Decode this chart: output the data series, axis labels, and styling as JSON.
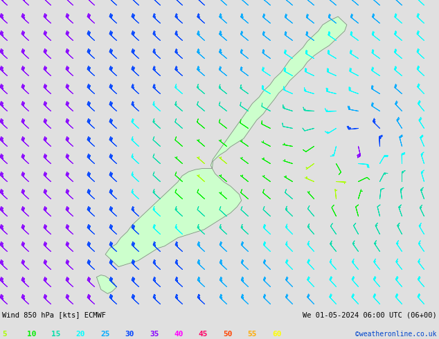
{
  "title_left": "Wind 850 hPa [kts] ECMWF",
  "title_right": "We 01-05-2024 06:00 UTC (06+00)",
  "credit": "©weatheronline.co.uk",
  "colorbar_values": [
    5,
    10,
    15,
    20,
    25,
    30,
    35,
    40,
    45,
    50,
    55,
    60
  ],
  "colorbar_colors": [
    "#aaff00",
    "#00ee00",
    "#00ddaa",
    "#00ffff",
    "#00aaff",
    "#0044ff",
    "#8800ff",
    "#ff00ff",
    "#ff0066",
    "#ff4400",
    "#ffaa00",
    "#ffff00"
  ],
  "bg_color": "#e0e0e0",
  "land_color": "#ccffcc",
  "coast_color": "#888888",
  "fig_width": 6.34,
  "fig_height": 4.9,
  "dpi": 100,
  "xlim": [
    163.0,
    183.0
  ],
  "ylim": [
    -48.5,
    -33.5
  ],
  "cyclone_lon": 179.5,
  "cyclone_lat": -40.5
}
